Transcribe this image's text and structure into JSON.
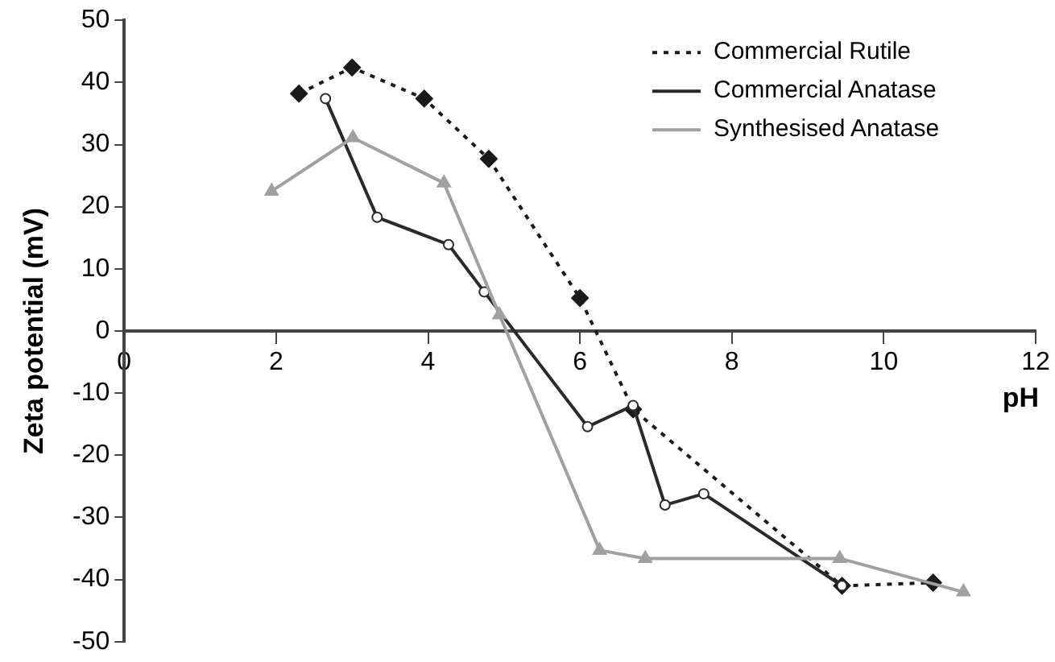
{
  "chart_data": {
    "type": "line",
    "xlabel": "pH",
    "ylabel": "Zeta potential (mV)",
    "xlim": [
      0,
      12
    ],
    "xticks": [
      0,
      2,
      4,
      6,
      8,
      10,
      12
    ],
    "ylim": [
      -50,
      50
    ],
    "yticks": [
      -50,
      -40,
      -30,
      -20,
      -10,
      0,
      10,
      20,
      30,
      40,
      50
    ],
    "grid": false,
    "legend": "top right",
    "series": [
      {
        "name": "Commercial Rutile",
        "color": "#1a1a1a",
        "line_style": "dotted",
        "marker": "diamond",
        "x": [
          2.3,
          3.0,
          3.95,
          4.8,
          6.0,
          6.7,
          9.45,
          10.65
        ],
        "values": [
          38.2,
          42.4,
          37.4,
          27.7,
          5.3,
          -12.6,
          -41,
          -40.5
        ]
      },
      {
        "name": "Commercial Anatase",
        "color": "#2a2a2a",
        "line_style": "solid",
        "marker": "circle",
        "x": [
          2.65,
          3.33,
          4.27,
          4.74,
          6.1,
          6.7,
          7.12,
          7.63,
          9.45
        ],
        "values": [
          37.4,
          18.3,
          13.9,
          6.3,
          -15.4,
          -12,
          -28,
          -26.2,
          -41
        ]
      },
      {
        "name": "Synthesised Anatase",
        "color": "#a0a0a0",
        "line_style": "solid",
        "marker": "triangle",
        "x": [
          1.94,
          3.01,
          4.21,
          4.94,
          6.26,
          6.86,
          9.42,
          11.05
        ],
        "values": [
          22.5,
          31.1,
          23.8,
          2.6,
          -35.3,
          -36.6,
          -36.6,
          -42
        ]
      }
    ]
  }
}
